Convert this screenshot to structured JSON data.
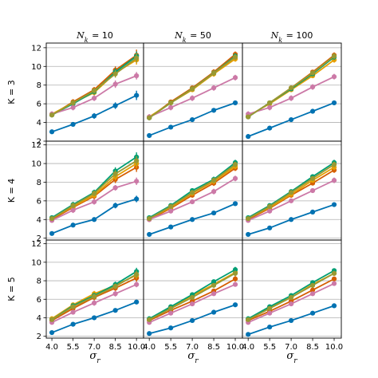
{
  "chart_data": {
    "type": "line",
    "x": [
      4.0,
      5.5,
      7.0,
      8.5,
      10.0
    ],
    "x_tick_labels": [
      "4.0",
      "5.5",
      "7.0",
      "8.5",
      "10.0"
    ],
    "xlabel": "σr",
    "col_titles": [
      "N_k = 10",
      "N_k = 50",
      "N_k = 100"
    ],
    "row_labels": [
      "K = 3",
      "K = 4",
      "K = 5"
    ],
    "y_ticks": [
      [
        2,
        4,
        6,
        8,
        10,
        12
      ],
      [
        2,
        4,
        6,
        8,
        10,
        12
      ],
      [
        2,
        4,
        6,
        8,
        10,
        12
      ]
    ],
    "ylim": [
      [
        2,
        12.5
      ],
      [
        1.8,
        12.4
      ],
      [
        1.8,
        12.4
      ]
    ],
    "grid": "horizontal",
    "colors": [
      "#0072B2",
      "#D55E00",
      "#E69F00",
      "#009E73",
      "#CC79A7",
      "#999933"
    ],
    "panels": [
      [
        {
          "series": [
            {
              "values": [
                3.0,
                3.8,
                4.7,
                5.8,
                6.9
              ],
              "err": [
                0.2,
                0.25,
                0.3,
                0.35,
                0.5
              ]
            },
            {
              "values": [
                4.8,
                6.2,
                7.5,
                9.6,
                11.2
              ],
              "err": [
                0.2,
                0.3,
                0.3,
                0.4,
                0.6
              ]
            },
            {
              "values": [
                4.9,
                6.1,
                7.2,
                9.3,
                10.7
              ],
              "err": [
                0.2,
                0.3,
                0.3,
                0.4,
                0.5
              ]
            },
            {
              "values": [
                4.8,
                6.0,
                7.3,
                9.4,
                11.1
              ],
              "err": [
                0.2,
                0.3,
                0.3,
                0.4,
                0.5
              ]
            },
            {
              "values": [
                4.9,
                5.6,
                6.6,
                8.1,
                9.0
              ],
              "err": [
                0.3,
                0.3,
                0.3,
                0.4,
                0.4
              ]
            },
            {
              "values": [
                4.8,
                6.1,
                7.4,
                9.2,
                10.9
              ],
              "err": [
                0.2,
                0.3,
                0.3,
                0.4,
                0.5
              ]
            }
          ]
        },
        {
          "series": [
            {
              "values": [
                2.6,
                3.5,
                4.3,
                5.3,
                6.1
              ],
              "err": [
                0.1,
                0.1,
                0.1,
                0.15,
                0.15
              ]
            },
            {
              "values": [
                4.5,
                6.2,
                7.7,
                9.4,
                11.3
              ],
              "err": [
                0.2,
                0.2,
                0.2,
                0.3,
                0.3
              ]
            },
            {
              "values": [
                4.6,
                6.1,
                7.5,
                9.2,
                10.8
              ],
              "err": [
                0.2,
                0.2,
                0.2,
                0.3,
                0.3
              ]
            },
            {
              "values": [
                4.5,
                6.1,
                7.6,
                9.3,
                11.1
              ],
              "err": [
                0.2,
                0.2,
                0.2,
                0.3,
                0.3
              ]
            },
            {
              "values": [
                4.6,
                5.6,
                6.6,
                7.7,
                8.8
              ],
              "err": [
                0.3,
                0.3,
                0.3,
                0.3,
                0.3
              ]
            },
            {
              "values": [
                4.5,
                6.1,
                7.6,
                9.3,
                11.0
              ],
              "err": [
                0.2,
                0.2,
                0.2,
                0.3,
                0.3
              ]
            }
          ]
        },
        {
          "series": [
            {
              "values": [
                2.5,
                3.4,
                4.3,
                5.2,
                6.1
              ],
              "err": [
                0.1,
                0.1,
                0.1,
                0.1,
                0.1
              ]
            },
            {
              "values": [
                4.6,
                6.1,
                7.7,
                9.4,
                11.2
              ],
              "err": [
                0.2,
                0.2,
                0.2,
                0.2,
                0.3
              ]
            },
            {
              "values": [
                4.7,
                6.0,
                7.5,
                9.0,
                10.7
              ],
              "err": [
                0.2,
                0.2,
                0.2,
                0.2,
                0.3
              ]
            },
            {
              "values": [
                4.6,
                6.1,
                7.6,
                9.2,
                11.0
              ],
              "err": [
                0.2,
                0.2,
                0.2,
                0.2,
                0.3
              ]
            },
            {
              "values": [
                4.9,
                5.6,
                6.6,
                7.8,
                8.9
              ],
              "err": [
                0.3,
                0.3,
                0.3,
                0.3,
                0.3
              ]
            },
            {
              "values": [
                4.6,
                6.1,
                7.7,
                9.3,
                11.1
              ],
              "err": [
                0.2,
                0.2,
                0.2,
                0.2,
                0.3
              ]
            }
          ]
        }
      ],
      [
        {
          "series": [
            {
              "values": [
                2.5,
                3.4,
                4.0,
                5.5,
                6.2
              ],
              "err": [
                0.15,
                0.2,
                0.2,
                0.3,
                0.35
              ]
            },
            {
              "values": [
                4.0,
                5.3,
                6.5,
                8.3,
                9.6
              ],
              "err": [
                0.2,
                0.3,
                0.3,
                0.4,
                0.5
              ]
            },
            {
              "values": [
                4.1,
                5.4,
                6.6,
                8.6,
                10.0
              ],
              "err": [
                0.2,
                0.3,
                0.3,
                0.4,
                0.5
              ]
            },
            {
              "values": [
                4.2,
                5.6,
                6.9,
                9.2,
                10.7
              ],
              "err": [
                0.2,
                0.3,
                0.3,
                0.4,
                0.5
              ]
            },
            {
              "values": [
                3.9,
                5.0,
                5.9,
                7.4,
                8.1
              ],
              "err": [
                0.2,
                0.3,
                0.3,
                0.3,
                0.4
              ]
            },
            {
              "values": [
                4.1,
                5.5,
                6.8,
                8.9,
                10.3
              ],
              "err": [
                0.2,
                0.3,
                0.3,
                0.4,
                0.5
              ]
            }
          ]
        },
        {
          "series": [
            {
              "values": [
                2.4,
                3.2,
                4.0,
                4.7,
                5.7
              ],
              "err": [
                0.1,
                0.1,
                0.1,
                0.1,
                0.15
              ]
            },
            {
              "values": [
                4.0,
                5.2,
                6.6,
                7.9,
                9.5
              ],
              "err": [
                0.2,
                0.2,
                0.2,
                0.3,
                0.3
              ]
            },
            {
              "values": [
                4.1,
                5.3,
                6.8,
                8.1,
                9.7
              ],
              "err": [
                0.2,
                0.2,
                0.2,
                0.3,
                0.3
              ]
            },
            {
              "values": [
                4.2,
                5.5,
                7.1,
                8.3,
                10.1
              ],
              "err": [
                0.2,
                0.2,
                0.2,
                0.3,
                0.3
              ]
            },
            {
              "values": [
                4.0,
                4.9,
                5.9,
                7.0,
                8.4
              ],
              "err": [
                0.2,
                0.2,
                0.2,
                0.3,
                0.3
              ]
            },
            {
              "values": [
                4.1,
                5.4,
                6.9,
                8.2,
                9.9
              ],
              "err": [
                0.2,
                0.2,
                0.2,
                0.3,
                0.3
              ]
            }
          ]
        },
        {
          "series": [
            {
              "values": [
                2.4,
                3.1,
                4.0,
                4.8,
                5.6
              ],
              "err": [
                0.1,
                0.1,
                0.1,
                0.1,
                0.1
              ]
            },
            {
              "values": [
                4.0,
                5.2,
                6.6,
                7.9,
                9.3
              ],
              "err": [
                0.2,
                0.2,
                0.2,
                0.2,
                0.3
              ]
            },
            {
              "values": [
                4.1,
                5.3,
                6.7,
                8.2,
                9.6
              ],
              "err": [
                0.2,
                0.2,
                0.2,
                0.2,
                0.3
              ]
            },
            {
              "values": [
                4.2,
                5.5,
                7.0,
                8.6,
                10.1
              ],
              "err": [
                0.2,
                0.2,
                0.2,
                0.2,
                0.3
              ]
            },
            {
              "values": [
                3.9,
                4.9,
                6.0,
                7.1,
                8.2
              ],
              "err": [
                0.2,
                0.2,
                0.2,
                0.2,
                0.3
              ]
            },
            {
              "values": [
                4.1,
                5.4,
                6.9,
                8.4,
                9.9
              ],
              "err": [
                0.2,
                0.2,
                0.2,
                0.2,
                0.3
              ]
            }
          ]
        }
      ],
      [
        {
          "series": [
            {
              "values": [
                2.4,
                3.3,
                4.0,
                4.8,
                5.7
              ],
              "err": [
                0.1,
                0.15,
                0.15,
                0.2,
                0.2
              ]
            },
            {
              "values": [
                3.7,
                5.0,
                6.2,
                7.2,
                8.3
              ],
              "err": [
                0.2,
                0.2,
                0.3,
                0.3,
                0.4
              ]
            },
            {
              "values": [
                3.9,
                5.4,
                6.6,
                7.5,
                8.6
              ],
              "err": [
                0.2,
                0.2,
                0.3,
                0.3,
                0.4
              ]
            },
            {
              "values": [
                3.8,
                5.3,
                6.4,
                7.6,
                9.0
              ],
              "err": [
                0.2,
                0.2,
                0.3,
                0.3,
                0.4
              ]
            },
            {
              "values": [
                3.5,
                4.6,
                5.6,
                6.6,
                7.6
              ],
              "err": [
                0.2,
                0.2,
                0.3,
                0.3,
                0.3
              ]
            },
            {
              "values": [
                3.8,
                5.2,
                6.3,
                7.4,
                8.7
              ],
              "err": [
                0.2,
                0.2,
                0.3,
                0.3,
                0.4
              ]
            }
          ]
        },
        {
          "series": [
            {
              "values": [
                2.3,
                2.9,
                3.7,
                4.6,
                5.4
              ],
              "err": [
                0.1,
                0.1,
                0.1,
                0.15,
                0.15
              ]
            },
            {
              "values": [
                3.7,
                4.8,
                5.8,
                6.9,
                8.2
              ],
              "err": [
                0.2,
                0.2,
                0.2,
                0.2,
                0.3
              ]
            },
            {
              "values": [
                3.8,
                5.1,
                6.4,
                7.6,
                8.9
              ],
              "err": [
                0.2,
                0.2,
                0.2,
                0.2,
                0.3
              ]
            },
            {
              "values": [
                3.9,
                5.2,
                6.5,
                7.9,
                9.2
              ],
              "err": [
                0.2,
                0.2,
                0.2,
                0.2,
                0.3
              ]
            },
            {
              "values": [
                3.5,
                4.5,
                5.5,
                6.6,
                7.6
              ],
              "err": [
                0.2,
                0.2,
                0.2,
                0.2,
                0.2
              ]
            },
            {
              "values": [
                3.8,
                5.0,
                6.2,
                7.5,
                8.8
              ],
              "err": [
                0.2,
                0.2,
                0.2,
                0.2,
                0.3
              ]
            }
          ]
        },
        {
          "series": [
            {
              "values": [
                2.2,
                3.0,
                3.7,
                4.5,
                5.3
              ],
              "err": [
                0.1,
                0.1,
                0.1,
                0.1,
                0.1
              ]
            },
            {
              "values": [
                3.7,
                4.7,
                5.8,
                7.0,
                8.2
              ],
              "err": [
                0.2,
                0.2,
                0.2,
                0.2,
                0.2
              ]
            },
            {
              "values": [
                3.8,
                5.1,
                6.2,
                7.6,
                8.8
              ],
              "err": [
                0.2,
                0.2,
                0.2,
                0.2,
                0.2
              ]
            },
            {
              "values": [
                3.9,
                5.2,
                6.4,
                7.8,
                9.1
              ],
              "err": [
                0.2,
                0.2,
                0.2,
                0.2,
                0.2
              ]
            },
            {
              "values": [
                3.5,
                4.5,
                5.5,
                6.6,
                7.7
              ],
              "err": [
                0.2,
                0.2,
                0.2,
                0.2,
                0.2
              ]
            },
            {
              "values": [
                3.8,
                5.0,
                6.2,
                7.5,
                8.8
              ],
              "err": [
                0.2,
                0.2,
                0.2,
                0.2,
                0.2
              ]
            }
          ]
        }
      ]
    ]
  }
}
